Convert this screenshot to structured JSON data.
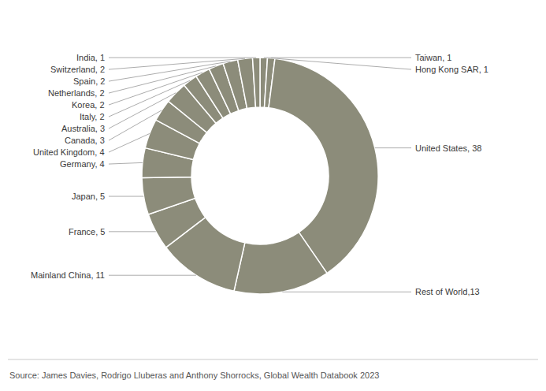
{
  "chart_data": {
    "type": "donut",
    "categories": [
      "Taiwan",
      "Hong Kong SAR",
      "United States",
      "Rest of World",
      "Mainland China",
      "France",
      "Japan",
      "Germany",
      "United Kingdom",
      "Canada",
      "Australia",
      "Italy",
      "Korea",
      "Netherlands",
      "Spain",
      "Switzerland",
      "India"
    ],
    "values": [
      1,
      1,
      38,
      13,
      11,
      5,
      5,
      4,
      4,
      3,
      3,
      2,
      2,
      2,
      2,
      2,
      1
    ],
    "value_labels": [
      "Taiwan, 1",
      "Hong Kong SAR, 1",
      "United States, 38",
      "Rest of World,13",
      "Mainland China, 11",
      "France, 5",
      "Japan, 5",
      "Germany, 4",
      "United Kingdom, 4",
      "Canada, 3",
      "Australia, 3",
      "Italy, 2",
      "Korea, 2",
      "Netherlands, 2",
      "Spain, 2",
      "Switzerland, 2",
      "India, 1"
    ],
    "data_labels": true,
    "color": "#8c8c7a",
    "annotations": [
      "Source: James Davies, Rodrigo Lluberas and Anthony Shorrocks, Global Wealth Databook 2023"
    ]
  }
}
